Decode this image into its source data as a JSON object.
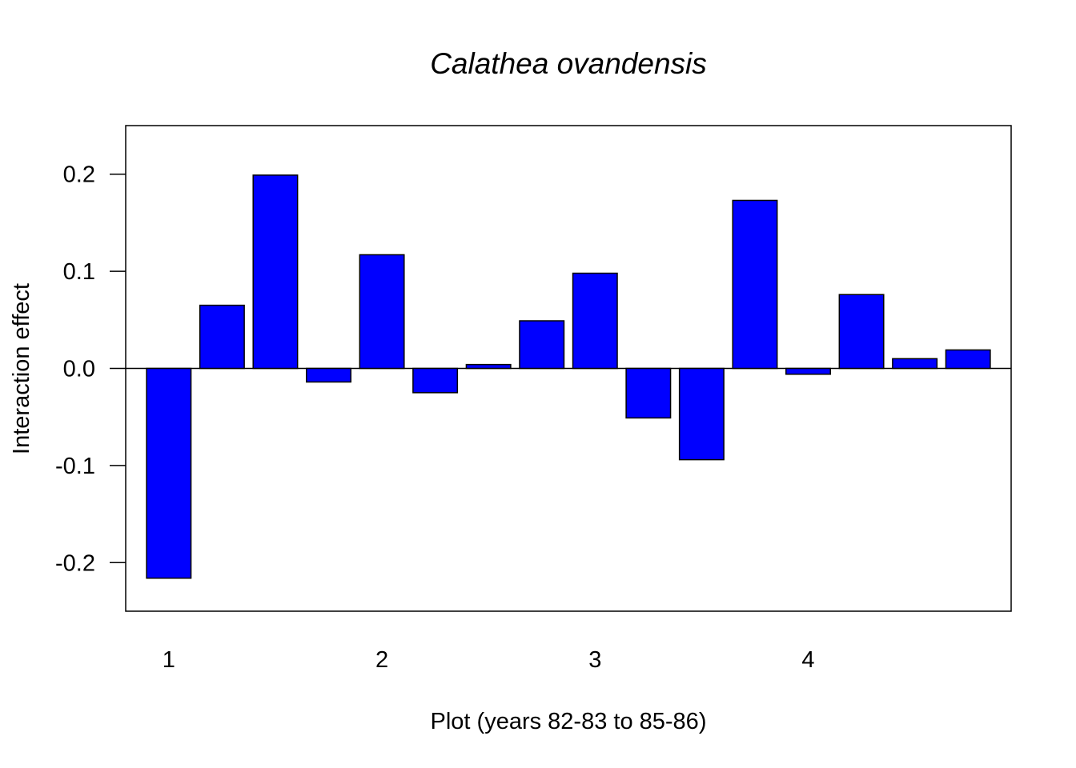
{
  "chart_data": {
    "type": "bar",
    "title": "Calathea ovandensis",
    "xlabel": "Plot (years 82-83 to 85-86)",
    "ylabel": "Interaction effect",
    "ylim": [
      -0.25,
      0.25
    ],
    "yticks": [
      -0.2,
      -0.1,
      0.0,
      0.1,
      0.2
    ],
    "ytick_labels": [
      "-0.2",
      "-0.1",
      "0.0",
      "0.1",
      "0.2"
    ],
    "group_labels": [
      "1",
      "2",
      "3",
      "4"
    ],
    "bars_per_group": 4,
    "values": [
      -0.216,
      0.065,
      0.199,
      -0.014,
      0.117,
      -0.025,
      0.004,
      0.049,
      0.098,
      -0.051,
      -0.094,
      0.173,
      -0.006,
      0.076,
      0.01,
      0.019
    ],
    "bar_color": "#0000FF",
    "zero_line": true,
    "grid": false,
    "legend": "none"
  }
}
